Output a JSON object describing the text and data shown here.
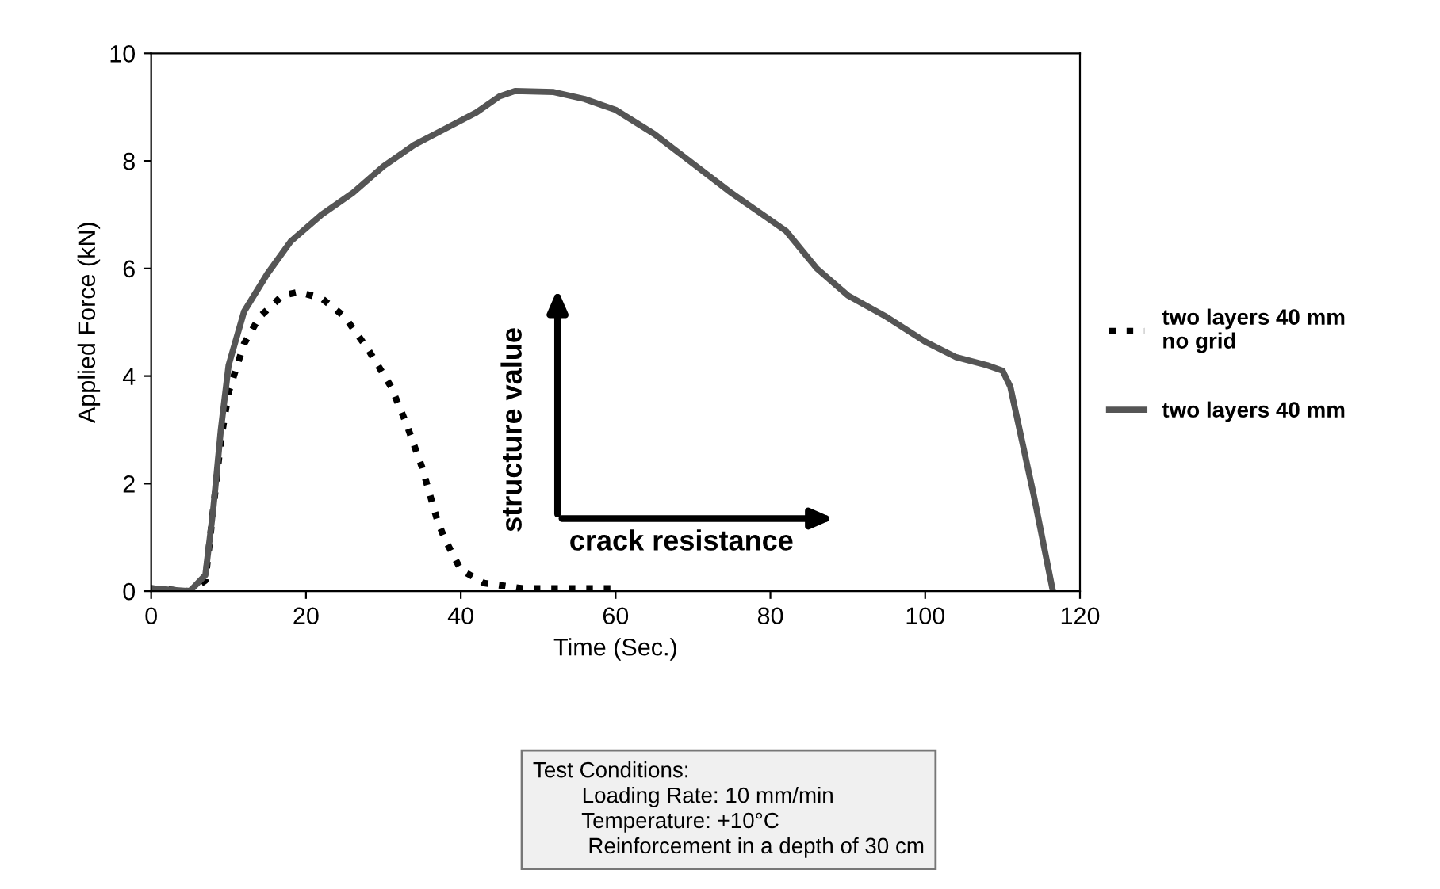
{
  "chart_data": {
    "type": "line",
    "xlabel": "Time (Sec.)",
    "ylabel": "Applied Force (kN)",
    "xlim": [
      0,
      120
    ],
    "ylim": [
      0,
      10
    ],
    "xticks": [
      0,
      20,
      40,
      60,
      80,
      100,
      120
    ],
    "yticks": [
      0,
      2,
      4,
      6,
      8,
      10
    ],
    "grid": false,
    "legend": "right",
    "marker": "none",
    "series": [
      {
        "name": "two layers 40 mm\nno grid",
        "color": "#000000",
        "line_style": "dotted",
        "x": [
          0,
          5,
          7,
          8,
          9,
          10,
          12,
          14,
          17,
          19,
          22,
          25,
          28,
          31,
          33,
          35,
          37,
          38,
          40,
          43,
          48,
          60
        ],
        "values": [
          0.05,
          0,
          0.2,
          1.5,
          2.8,
          3.7,
          4.6,
          5.1,
          5.5,
          5.56,
          5.45,
          5.1,
          4.5,
          3.8,
          3.1,
          2.3,
          1.3,
          0.95,
          0.4,
          0.15,
          0.05,
          0.05
        ]
      },
      {
        "name": "two layers 40 mm",
        "color": "#555555",
        "line_style": "solid",
        "x": [
          0,
          5,
          7,
          8,
          9,
          10,
          12,
          15,
          18,
          22,
          26,
          30,
          34,
          38,
          42,
          45,
          47,
          52,
          56,
          60,
          65,
          70,
          75,
          78,
          82,
          86,
          90,
          95,
          100,
          104,
          108,
          110,
          111,
          114,
          116.5
        ],
        "values": [
          0.05,
          0,
          0.3,
          1.5,
          3,
          4.2,
          5.2,
          5.9,
          6.5,
          7.0,
          7.4,
          7.9,
          8.3,
          8.6,
          8.9,
          9.2,
          9.3,
          9.28,
          9.15,
          8.95,
          8.5,
          7.95,
          7.4,
          7.1,
          6.7,
          6.0,
          5.5,
          5.1,
          4.64,
          4.35,
          4.2,
          4.1,
          3.8,
          1.8,
          0
        ]
      }
    ],
    "annotations": [
      "structure value",
      "crack resistance",
      "Test Conditions:\n        Loading Rate: 10 mm/min\n        Temperature: +10°C\n         Reinforcement in a depth of 30 cm"
    ]
  }
}
